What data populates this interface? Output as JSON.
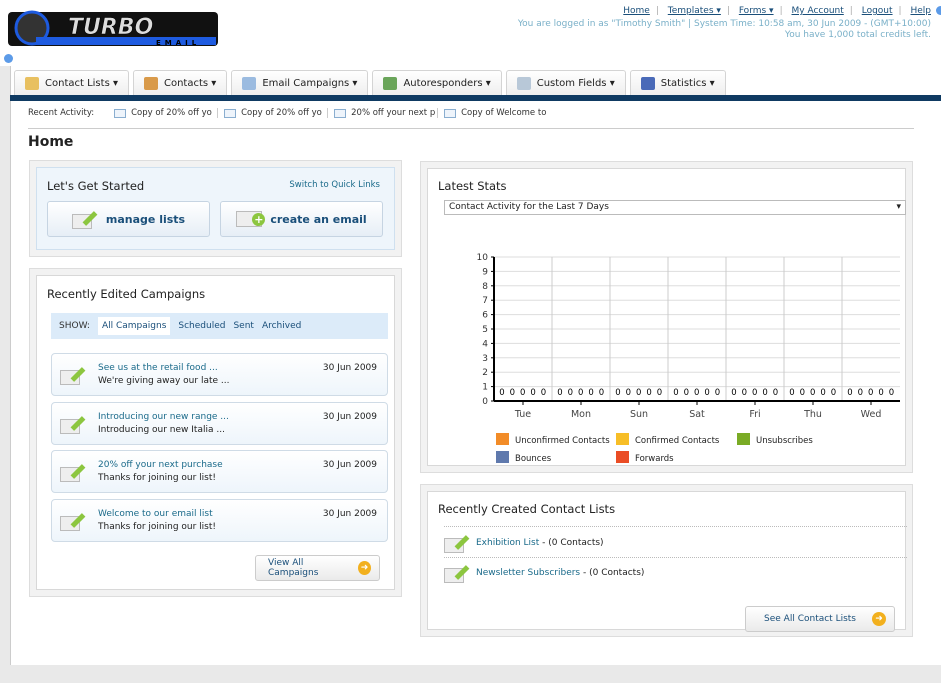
{
  "logo": {
    "text": "TURBO",
    "sub": "EMAIL"
  },
  "toplinks": [
    "Home",
    "Templates ▾",
    "Forms ▾",
    "My Account",
    "Logout",
    "Help"
  ],
  "login_info": "You are logged in as \"Timothy Smith\" | System Time: 10:58 am, 30 Jun 2009 - (GMT+10:00)",
  "credits": "You have 1,000 total credits left.",
  "tabs": [
    {
      "label": "Contact Lists ▾",
      "icon": "folder-icon",
      "color": "#e8c060"
    },
    {
      "label": "Contacts ▾",
      "icon": "user-icon",
      "color": "#d99a4a"
    },
    {
      "label": "Email Campaigns ▾",
      "icon": "envelope-icon",
      "color": "#9bbbe0"
    },
    {
      "label": "Autoresponders ▾",
      "icon": "autoresponder-icon",
      "color": "#6aa55a"
    },
    {
      "label": "Custom Fields ▾",
      "icon": "document-icon",
      "color": "#b8c8d8"
    },
    {
      "label": "Statistics ▾",
      "icon": "bar-chart-icon",
      "color": "#4a6ab8"
    }
  ],
  "recent": {
    "label": "Recent Activity:",
    "items": [
      "Copy of 20% off yo",
      "Copy of 20% off yo",
      "20% off your next p",
      "Copy of Welcome to"
    ]
  },
  "page_title": "Home",
  "get_started": {
    "title": "Let's Get Started",
    "switch": "Switch to Quick Links",
    "manage": "manage lists",
    "create": "create an email"
  },
  "campaigns": {
    "title": "Recently Edited Campaigns",
    "show": "SHOW:",
    "filters": [
      "All Campaigns",
      "Scheduled",
      "Sent",
      "Archived"
    ],
    "items": [
      {
        "title": "See us at the retail food ...",
        "sub": "We're giving away our late ...",
        "date": "30 Jun 2009"
      },
      {
        "title": "Introducing our new range ...",
        "sub": "Introducing our new Italia ...",
        "date": "30 Jun 2009"
      },
      {
        "title": "20% off your next purchase",
        "sub": "Thanks for joining our list!",
        "date": "30 Jun 2009"
      },
      {
        "title": "Welcome to our email list",
        "sub": "Thanks for joining our list!",
        "date": "30 Jun 2009"
      }
    ],
    "view_all": "View All Campaigns"
  },
  "stats": {
    "title": "Latest Stats",
    "select": "Contact Activity for the Last 7 Days"
  },
  "chart_data": {
    "type": "bar",
    "categories": [
      "Tue",
      "Mon",
      "Sun",
      "Sat",
      "Fri",
      "Thu",
      "Wed"
    ],
    "series": [
      {
        "name": "Unconfirmed Contacts",
        "color": "#f28c28",
        "values": [
          0,
          0,
          0,
          0,
          0,
          0,
          0
        ]
      },
      {
        "name": "Confirmed Contacts",
        "color": "#f7be27",
        "values": [
          0,
          0,
          0,
          0,
          0,
          0,
          0
        ]
      },
      {
        "name": "Unsubscribes",
        "color": "#7aab25",
        "values": [
          0,
          0,
          0,
          0,
          0,
          0,
          0
        ]
      },
      {
        "name": "Bounces",
        "color": "#5f79ad",
        "values": [
          0,
          0,
          0,
          0,
          0,
          0,
          0
        ]
      },
      {
        "name": "Forwards",
        "color": "#ea4d25",
        "values": [
          0,
          0,
          0,
          0,
          0,
          0,
          0
        ]
      }
    ],
    "ylim": [
      0,
      10
    ],
    "yticks": [
      0,
      1,
      2,
      3,
      4,
      5,
      6,
      7,
      8,
      9,
      10
    ],
    "grid": true,
    "legend": "bottom"
  },
  "lists": {
    "title": "Recently Created Contact Lists",
    "items": [
      {
        "name": "Exhibition List",
        "count": " - (0 Contacts)"
      },
      {
        "name": "Newsletter Subscribers",
        "count": " - (0 Contacts)"
      }
    ],
    "see_all": "See All Contact Lists"
  }
}
